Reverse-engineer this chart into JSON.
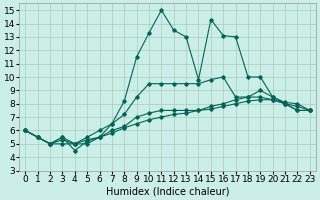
{
  "xlabel": "Humidex (Indice chaleur)",
  "xlim": [
    -0.5,
    23.5
  ],
  "ylim": [
    3,
    15.5
  ],
  "yticks": [
    3,
    4,
    5,
    6,
    7,
    8,
    9,
    10,
    11,
    12,
    13,
    14,
    15
  ],
  "xticks": [
    0,
    1,
    2,
    3,
    4,
    5,
    6,
    7,
    8,
    9,
    10,
    11,
    12,
    13,
    14,
    15,
    16,
    17,
    18,
    19,
    20,
    21,
    22,
    23
  ],
  "bg_color": "#cbeee8",
  "grid_color": "#aaccbb",
  "line_color": "#006655",
  "line1_y": [
    6.0,
    5.5,
    5.0,
    5.5,
    4.5,
    5.2,
    5.5,
    6.5,
    8.2,
    11.5,
    13.3,
    15.0,
    13.5,
    13.0,
    9.8,
    14.3,
    13.1,
    13.0,
    10.0,
    10.0,
    8.5,
    8.1,
    8.0,
    7.5
  ],
  "line2_y": [
    6.0,
    5.5,
    5.0,
    5.3,
    5.0,
    5.5,
    6.0,
    6.5,
    7.2,
    8.5,
    9.5,
    9.5,
    9.5,
    9.5,
    9.5,
    9.8,
    10.0,
    8.5,
    8.5,
    9.0,
    8.5,
    8.0,
    7.5,
    7.5
  ],
  "line3_y": [
    6.0,
    5.5,
    5.0,
    5.0,
    5.0,
    5.0,
    5.5,
    6.0,
    6.3,
    7.0,
    7.3,
    7.5,
    7.5,
    7.5,
    7.5,
    7.8,
    8.0,
    8.3,
    8.5,
    8.5,
    8.3,
    8.0,
    7.8,
    7.5
  ],
  "line4_y": [
    6.0,
    5.5,
    5.0,
    5.5,
    5.0,
    5.3,
    5.5,
    5.8,
    6.2,
    6.5,
    6.8,
    7.0,
    7.2,
    7.3,
    7.5,
    7.6,
    7.8,
    8.0,
    8.2,
    8.3,
    8.3,
    8.0,
    7.5,
    7.5
  ],
  "fontsize_label": 7,
  "fontsize_tick": 6.5
}
